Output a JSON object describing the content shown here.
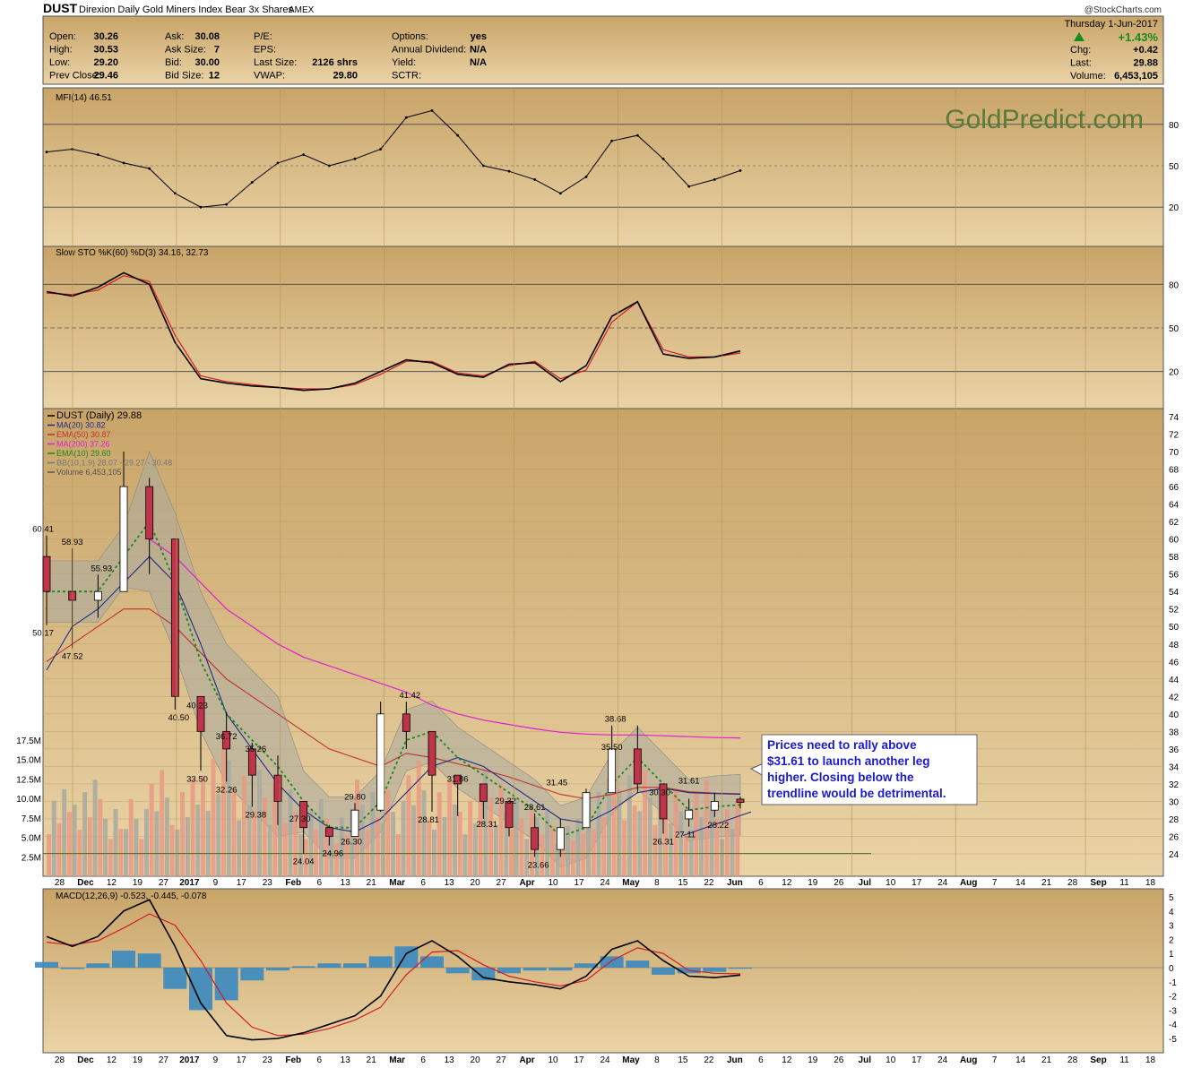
{
  "header": {
    "symbol": "DUST",
    "name": "Direxion Daily Gold Miners Index Bear 3x Shares",
    "exchange": "AMEX",
    "copyright": "@StockCharts.com",
    "date": "Thursday   1-Jun-2017",
    "change_pct": "+1.43%",
    "quote_col1": [
      {
        "label": "Open:",
        "value": "30.26"
      },
      {
        "label": "High:",
        "value": "30.53"
      },
      {
        "label": "Low:",
        "value": "29.20"
      },
      {
        "label": "Prev Close:",
        "value": "29.46"
      }
    ],
    "quote_col2": [
      {
        "label": "Ask:",
        "value": "30.08"
      },
      {
        "label": "Ask Size:",
        "value": "7"
      },
      {
        "label": "Bid:",
        "value": "30.00"
      },
      {
        "label": "Bid Size:",
        "value": "12"
      }
    ],
    "quote_col3": [
      {
        "label": "P/E:",
        "value": ""
      },
      {
        "label": "EPS:",
        "value": ""
      },
      {
        "label": "Last Size:",
        "value": "2126 shrs"
      },
      {
        "label": "VWAP:",
        "value": "29.80"
      }
    ],
    "quote_col4": [
      {
        "label": "Options:",
        "value": "yes"
      },
      {
        "label": "Annual Dividend:",
        "value": "N/A"
      },
      {
        "label": "Yield:",
        "value": "N/A"
      },
      {
        "label": "SCTR:",
        "value": ""
      }
    ],
    "quote_right": [
      {
        "label": "Chg:",
        "value": "+0.42"
      },
      {
        "label": "Last:",
        "value": "29.88"
      },
      {
        "label": "Volume:",
        "value": "6,453,105"
      }
    ]
  },
  "watermark": "GoldPredict.com",
  "colors": {
    "panel_bg": "#d9b87c",
    "up_candle": "#ffffff",
    "down_candle": "#c0344a",
    "ma20": "#1f2a8a",
    "ema50": "#c0302a",
    "ma200": "#e020d0",
    "ema10": "#1a8a1a",
    "bb_fill": "#a9a9a0",
    "vol_up": "#a9a9a0",
    "vol_down": "#e89a82",
    "annotation_text": "#1a1ad0"
  },
  "annotation": "Prices need to rally above $31.61 to launch another leg higher. Closing below the trendline would be detrimental.",
  "chart_data": [
    {
      "panel": "mfi",
      "type": "line",
      "title": "MFI(14) 46.51",
      "ylim": [
        0,
        100
      ],
      "yticks": [
        20,
        50,
        80
      ],
      "x": [
        "2016-11-28",
        "2016-12-05",
        "2016-12-12",
        "2016-12-19",
        "2016-12-27",
        "2017-01-03",
        "2017-01-09",
        "2017-01-17",
        "2017-01-23",
        "2017-01-30",
        "2017-02-06",
        "2017-02-13",
        "2017-02-21",
        "2017-02-27",
        "2017-03-06",
        "2017-03-13",
        "2017-03-20",
        "2017-03-27",
        "2017-04-03",
        "2017-04-10",
        "2017-04-17",
        "2017-04-24",
        "2017-05-01",
        "2017-05-08",
        "2017-05-15",
        "2017-05-22",
        "2017-05-29",
        "2017-06-01"
      ],
      "values": [
        60,
        62,
        58,
        52,
        48,
        30,
        20,
        22,
        38,
        52,
        58,
        50,
        55,
        62,
        85,
        90,
        72,
        50,
        46,
        40,
        30,
        42,
        68,
        72,
        55,
        35,
        40,
        46.51
      ]
    },
    {
      "panel": "stochastic",
      "type": "line",
      "title": "Slow STO %K(60) %D(3) 34.16, 32.73",
      "ylim": [
        0,
        100
      ],
      "yticks": [
        20,
        50,
        80
      ],
      "x": [
        "2016-11-28",
        "2016-12-05",
        "2016-12-12",
        "2016-12-19",
        "2016-12-27",
        "2017-01-03",
        "2017-01-09",
        "2017-01-17",
        "2017-01-23",
        "2017-01-30",
        "2017-02-06",
        "2017-02-13",
        "2017-02-21",
        "2017-02-27",
        "2017-03-06",
        "2017-03-13",
        "2017-03-20",
        "2017-03-27",
        "2017-04-03",
        "2017-04-10",
        "2017-04-17",
        "2017-04-24",
        "2017-05-01",
        "2017-05-08",
        "2017-05-15",
        "2017-05-22",
        "2017-05-29",
        "2017-06-01"
      ],
      "series": [
        {
          "name": "%K(60)",
          "values": [
            75,
            72,
            78,
            88,
            80,
            40,
            15,
            12,
            10,
            9,
            7,
            8,
            12,
            20,
            28,
            26,
            18,
            16,
            25,
            26,
            13,
            24,
            58,
            68,
            32,
            29,
            30,
            34.16
          ]
        },
        {
          "name": "%D(3)",
          "values": [
            74,
            73,
            76,
            86,
            82,
            45,
            17,
            13,
            11,
            9,
            8,
            8,
            11,
            18,
            27,
            27,
            19,
            17,
            24,
            27,
            15,
            21,
            54,
            68,
            35,
            30,
            30,
            32.73
          ]
        }
      ]
    },
    {
      "panel": "price",
      "type": "candlestick",
      "title": "DUST (Daily) 29.88",
      "ylim": [
        22.5,
        75
      ],
      "yticks": [
        24,
        26,
        28,
        30,
        32,
        34,
        36,
        38,
        40,
        42,
        44,
        46,
        48,
        50,
        52,
        54,
        56,
        58,
        60,
        62,
        64,
        66,
        68,
        70,
        72,
        74
      ],
      "vol_ticks": [
        "2.5M",
        "5.0M",
        "7.5M",
        "10.0M",
        "12.5M",
        "15.0M",
        "17.5M"
      ],
      "x_ticks": [
        "28",
        "Dec",
        "12",
        "19",
        "27",
        "2017",
        "9",
        "17",
        "23",
        "Feb",
        "6",
        "13",
        "21",
        "Mar",
        "6",
        "13",
        "20",
        "27",
        "Apr",
        "10",
        "17",
        "24",
        "May",
        "8",
        "15",
        "22",
        "Jun",
        "6",
        "12",
        "19",
        "26",
        "Jul",
        "10",
        "17",
        "24",
        "Aug",
        "7",
        "14",
        "21",
        "28",
        "Sep",
        "11",
        "18"
      ],
      "legend": [
        "DUST (Daily) 29.88",
        "MA(20) 30.82",
        "EMA(50) 30.87",
        "MA(200) 37.26",
        "EMA(10) 29.60",
        "BB(10,1.9) 28.07 - 29.27 - 30.48",
        "Volume 6,453,105"
      ],
      "x": [
        "2016-11-28",
        "2016-12-05",
        "2016-12-12",
        "2016-12-19",
        "2016-12-27",
        "2017-01-03",
        "2017-01-09",
        "2017-01-17",
        "2017-01-23",
        "2017-01-30",
        "2017-02-06",
        "2017-02-13",
        "2017-02-21",
        "2017-02-27",
        "2017-03-06",
        "2017-03-13",
        "2017-03-20",
        "2017-03-27",
        "2017-04-03",
        "2017-04-10",
        "2017-04-17",
        "2017-04-24",
        "2017-05-01",
        "2017-05-08",
        "2017-05-15",
        "2017-05-22",
        "2017-05-29",
        "2017-06-01"
      ],
      "ohlc_weekly": [
        [
          58,
          60.41,
          50.17,
          54
        ],
        [
          54,
          58.93,
          47.52,
          53
        ],
        [
          53,
          55.93,
          51,
          54
        ],
        [
          54,
          70,
          55,
          66
        ],
        [
          66,
          67,
          56,
          60
        ],
        [
          60,
          60,
          40.5,
          42
        ],
        [
          42,
          42,
          33.5,
          38
        ],
        [
          38,
          40.23,
          32.26,
          36
        ],
        [
          36,
          36.72,
          29.38,
          33
        ],
        [
          33,
          35.26,
          27.3,
          30
        ],
        [
          30,
          30,
          24.04,
          27
        ],
        [
          27,
          27.3,
          24.96,
          26
        ],
        [
          26,
          29.8,
          26.3,
          29
        ],
        [
          29,
          41.42,
          28.8,
          40
        ],
        [
          40,
          41.42,
          36,
          38
        ],
        [
          38,
          38,
          28.81,
          33
        ],
        [
          33,
          33,
          28.31,
          32
        ],
        [
          32,
          31.86,
          28,
          30
        ],
        [
          30,
          29.32,
          26,
          27
        ],
        [
          27,
          28.61,
          23.66,
          24.5
        ],
        [
          24.5,
          28,
          23.66,
          27
        ],
        [
          27,
          31.45,
          27,
          31
        ],
        [
          31,
          38.68,
          31,
          36
        ],
        [
          36,
          38.68,
          31,
          32
        ],
        [
          32,
          31,
          26.31,
          28
        ],
        [
          28,
          30.3,
          27.11,
          29
        ],
        [
          29,
          31,
          28.22,
          30
        ],
        [
          30.26,
          30.53,
          29.2,
          29.88
        ]
      ],
      "price_labels": [
        {
          "value": 60.41,
          "text": "60.41"
        },
        {
          "value": 58.93,
          "text": "58.93"
        },
        {
          "value": 55.93,
          "text": "55.93"
        },
        {
          "value": 50.17,
          "text": "50.17"
        },
        {
          "value": 47.52,
          "text": "47.52"
        },
        {
          "value": 40.5,
          "text": "40.50"
        },
        {
          "value": 40.23,
          "text": "40.23"
        },
        {
          "value": 36.72,
          "text": "36.72"
        },
        {
          "value": 35.26,
          "text": "35.26"
        },
        {
          "value": 33.5,
          "text": "33.50"
        },
        {
          "value": 32.26,
          "text": "32.26"
        },
        {
          "value": 29.38,
          "text": "29.38"
        },
        {
          "value": 27.3,
          "text": "27.30"
        },
        {
          "value": 24.04,
          "text": "24.04"
        },
        {
          "value": 24.96,
          "text": "24.96"
        },
        {
          "value": 26.3,
          "text": "26.30"
        },
        {
          "value": 29.8,
          "text": "29.80"
        },
        {
          "value": 41.42,
          "text": "41.42"
        },
        {
          "value": 28.81,
          "text": "28.81"
        },
        {
          "value": 31.86,
          "text": "31.86"
        },
        {
          "value": 28.31,
          "text": "28.31"
        },
        {
          "value": 29.32,
          "text": "29.32"
        },
        {
          "value": 28.61,
          "text": "28.61"
        },
        {
          "value": 23.66,
          "text": "23.66"
        },
        {
          "value": 31.45,
          "text": "31.45"
        },
        {
          "value": 35.5,
          "text": "35.50"
        },
        {
          "value": 38.68,
          "text": "38.68"
        },
        {
          "value": 30.3,
          "text": "30.30"
        },
        {
          "value": 31.61,
          "text": "31.61"
        },
        {
          "value": 28.22,
          "text": "28.22"
        },
        {
          "value": 27.11,
          "text": "27.11"
        },
        {
          "value": 26.31,
          "text": "26.31"
        }
      ],
      "series": [
        {
          "name": "MA(20)",
          "values": [
            45,
            50,
            52,
            55,
            58,
            55,
            48,
            40,
            36,
            32,
            29,
            27,
            26.5,
            28,
            31,
            34,
            35,
            34,
            32,
            30,
            28,
            27.5,
            29,
            31,
            31.5,
            31,
            30.9,
            30.82
          ]
        },
        {
          "name": "EMA(50)",
          "values": [
            46,
            48,
            50,
            52,
            52,
            50,
            47,
            44,
            42,
            40,
            38,
            36,
            35,
            34,
            35.5,
            35,
            34.3,
            33.6,
            32.8,
            31.8,
            30.8,
            30.3,
            30.8,
            31.6,
            31.6,
            31.1,
            30.95,
            30.87
          ]
        },
        {
          "name": "MA(200)",
          "values": [
            null,
            null,
            null,
            null,
            60,
            58,
            55,
            52,
            50,
            48,
            46.5,
            45.5,
            44.5,
            43.5,
            42.5,
            41,
            40,
            39.3,
            38.8,
            38.3,
            37.9,
            37.7,
            37.6,
            37.6,
            37.5,
            37.4,
            37.3,
            37.26
          ]
        },
        {
          "name": "EMA(10)",
          "values": [
            54,
            54,
            54,
            58,
            62,
            55,
            46,
            40,
            37,
            34,
            30,
            27,
            27,
            30,
            37,
            38,
            35,
            33,
            31,
            29,
            26,
            27,
            32,
            35,
            32,
            29,
            29.4,
            29.6
          ]
        }
      ]
    },
    {
      "panel": "macd",
      "type": "line",
      "title": "MACD(12,26,9) -0.523, -0.445, -0.078",
      "ylim": [
        -5.5,
        5.5
      ],
      "yticks": [
        -5,
        -4,
        -3,
        -2,
        -1,
        0,
        1,
        2,
        3,
        4,
        5
      ],
      "x": [
        "2016-11-28",
        "2016-12-05",
        "2016-12-12",
        "2016-12-19",
        "2016-12-27",
        "2017-01-03",
        "2017-01-09",
        "2017-01-17",
        "2017-01-23",
        "2017-01-30",
        "2017-02-06",
        "2017-02-13",
        "2017-02-21",
        "2017-02-27",
        "2017-03-06",
        "2017-03-13",
        "2017-03-20",
        "2017-03-27",
        "2017-04-03",
        "2017-04-10",
        "2017-04-17",
        "2017-04-24",
        "2017-05-01",
        "2017-05-08",
        "2017-05-15",
        "2017-05-22",
        "2017-05-29",
        "2017-06-01"
      ],
      "series": [
        {
          "name": "MACD",
          "values": [
            2.2,
            1.5,
            2.2,
            4.0,
            4.8,
            1.5,
            -2.5,
            -4.8,
            -5.1,
            -5.0,
            -4.6,
            -4.0,
            -3.4,
            -2.0,
            1.0,
            1.9,
            0.8,
            -0.7,
            -1.0,
            -1.2,
            -1.5,
            -0.6,
            1.3,
            1.9,
            0.5,
            -0.6,
            -0.7,
            -0.523
          ]
        },
        {
          "name": "Signal",
          "values": [
            1.8,
            1.6,
            1.9,
            2.8,
            3.8,
            3.0,
            0.5,
            -2.5,
            -4.2,
            -4.8,
            -4.7,
            -4.3,
            -3.7,
            -2.8,
            -0.5,
            1.1,
            1.2,
            0.2,
            -0.6,
            -1.0,
            -1.3,
            -0.9,
            0.5,
            1.4,
            1.0,
            -0.2,
            -0.4,
            -0.445
          ]
        },
        {
          "name": "Histogram",
          "values": [
            0.4,
            -0.1,
            0.3,
            1.2,
            1.0,
            -1.5,
            -3.0,
            -2.3,
            -0.9,
            -0.2,
            0.1,
            0.3,
            0.3,
            0.8,
            1.5,
            0.8,
            -0.4,
            -0.9,
            -0.4,
            -0.2,
            -0.2,
            0.3,
            0.8,
            0.5,
            -0.5,
            -0.4,
            -0.3,
            -0.078
          ]
        }
      ]
    }
  ]
}
